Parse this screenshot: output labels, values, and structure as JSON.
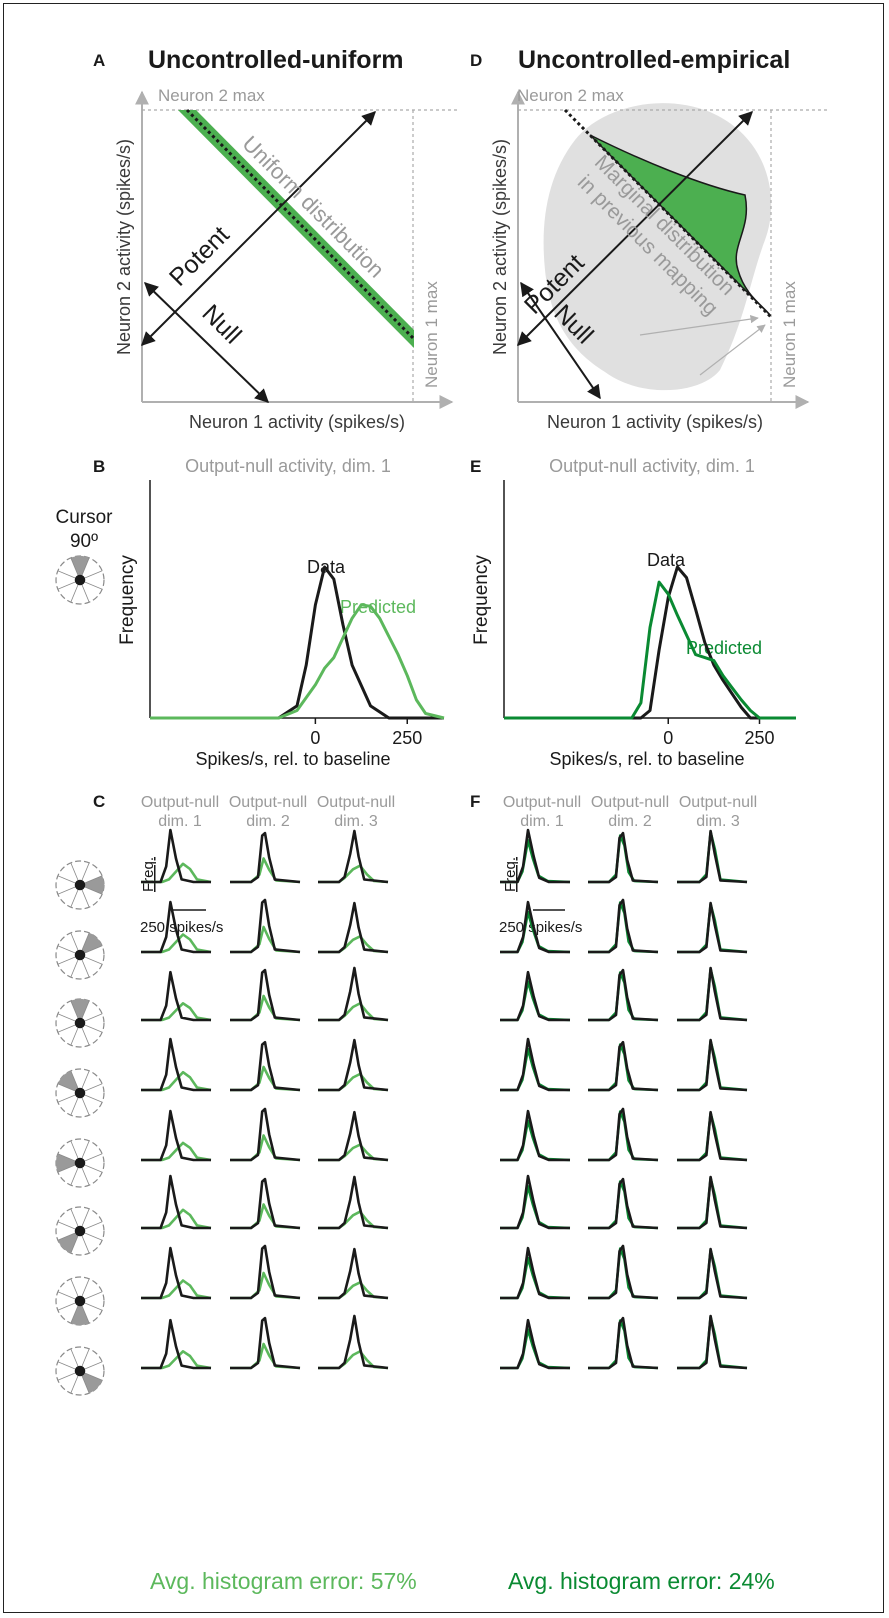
{
  "colors": {
    "data": "#1a1a1a",
    "light_green": "#5cb85c",
    "dark_green": "#0a8a32",
    "band_green": "#4caf50",
    "gray_text": "#9a9a9a",
    "gray_fill": "#e0e0e0",
    "axis_gray": "#b0b0b0"
  },
  "panels": {
    "A": {
      "letter": "A",
      "title": "Uncontrolled-uniform"
    },
    "D": {
      "letter": "D",
      "title": "Uncontrolled-empirical"
    },
    "B": {
      "letter": "B"
    },
    "E": {
      "letter": "E"
    },
    "C": {
      "letter": "C"
    },
    "F": {
      "letter": "F"
    }
  },
  "diagram": {
    "neuron2_max": "Neuron 2 max",
    "neuron1_max": "Neuron 1 max",
    "x_axis": "Neuron 1 activity (spikes/s)",
    "y_axis": "Neuron 2 activity (spikes/s)",
    "potent": "Potent",
    "null": "Null",
    "uniform_label": "Uniform distribution",
    "marginal_label_1": "Marginal distribution",
    "marginal_label_2": "in previous mapping"
  },
  "cursor_label": [
    "Cursor",
    "90º"
  ],
  "big_hist": {
    "title": "Output-null activity, dim. 1",
    "ylabel": "Frequency",
    "xlabel": "Spikes/s, rel. to baseline",
    "data_label": "Data",
    "predicted_label": "Predicted"
  },
  "small_grid": {
    "col_headers": [
      {
        "line1": "Output-null",
        "line2": "dim. 1"
      },
      {
        "line1": "Output-null",
        "line2": "dim. 2"
      },
      {
        "line1": "Output-null",
        "line2": "dim. 3"
      }
    ],
    "freq_label": "Freq.",
    "scale_label": "250 spikes/s",
    "cursor_directions_deg": [
      0,
      45,
      90,
      135,
      180,
      225,
      270,
      315
    ]
  },
  "errors": {
    "left": "Avg. histogram error: 57%",
    "right": "Avg. histogram error: 24%"
  },
  "chart_data": [
    {
      "id": "B",
      "type": "line",
      "title": "Output-null activity, dim. 1",
      "xlabel": "Spikes/s, rel. to baseline",
      "ylabel": "Frequency",
      "x_ticks": [
        0,
        250
      ],
      "xlim": [
        -450,
        350
      ],
      "series": [
        {
          "name": "Data",
          "color": "#1a1a1a",
          "x": [
            -450,
            -100,
            -50,
            -25,
            0,
            25,
            50,
            75,
            100,
            150,
            200,
            350
          ],
          "y": [
            0,
            0,
            0.08,
            0.35,
            0.75,
            1.0,
            0.92,
            0.62,
            0.35,
            0.08,
            0,
            0
          ]
        },
        {
          "name": "Predicted",
          "color": "#5cb85c",
          "x": [
            -450,
            -100,
            -50,
            0,
            25,
            50,
            75,
            100,
            125,
            150,
            175,
            200,
            225,
            250,
            275,
            300,
            350
          ],
          "y": [
            0,
            0,
            0.05,
            0.22,
            0.33,
            0.4,
            0.53,
            0.66,
            0.75,
            0.74,
            0.66,
            0.54,
            0.42,
            0.28,
            0.12,
            0.03,
            0
          ]
        }
      ]
    },
    {
      "id": "E",
      "type": "line",
      "title": "Output-null activity, dim. 1",
      "xlabel": "Spikes/s, rel. to baseline",
      "ylabel": "Frequency",
      "x_ticks": [
        0,
        250
      ],
      "xlim": [
        -450,
        350
      ],
      "series": [
        {
          "name": "Data",
          "color": "#1a1a1a",
          "x": [
            -450,
            -75,
            -50,
            -25,
            0,
            25,
            50,
            75,
            100,
            125,
            150,
            175,
            200,
            225,
            350
          ],
          "y": [
            0,
            0,
            0.05,
            0.45,
            0.8,
            1.0,
            0.93,
            0.72,
            0.5,
            0.35,
            0.25,
            0.16,
            0.07,
            0,
            0
          ]
        },
        {
          "name": "Predicted",
          "color": "#0a8a32",
          "x": [
            -450,
            -100,
            -75,
            -50,
            -25,
            0,
            25,
            50,
            75,
            100,
            125,
            150,
            175,
            200,
            225,
            250,
            350
          ],
          "y": [
            0,
            0,
            0.1,
            0.6,
            0.9,
            0.82,
            0.68,
            0.55,
            0.42,
            0.4,
            0.38,
            0.28,
            0.2,
            0.12,
            0.05,
            0,
            0
          ]
        }
      ]
    }
  ]
}
